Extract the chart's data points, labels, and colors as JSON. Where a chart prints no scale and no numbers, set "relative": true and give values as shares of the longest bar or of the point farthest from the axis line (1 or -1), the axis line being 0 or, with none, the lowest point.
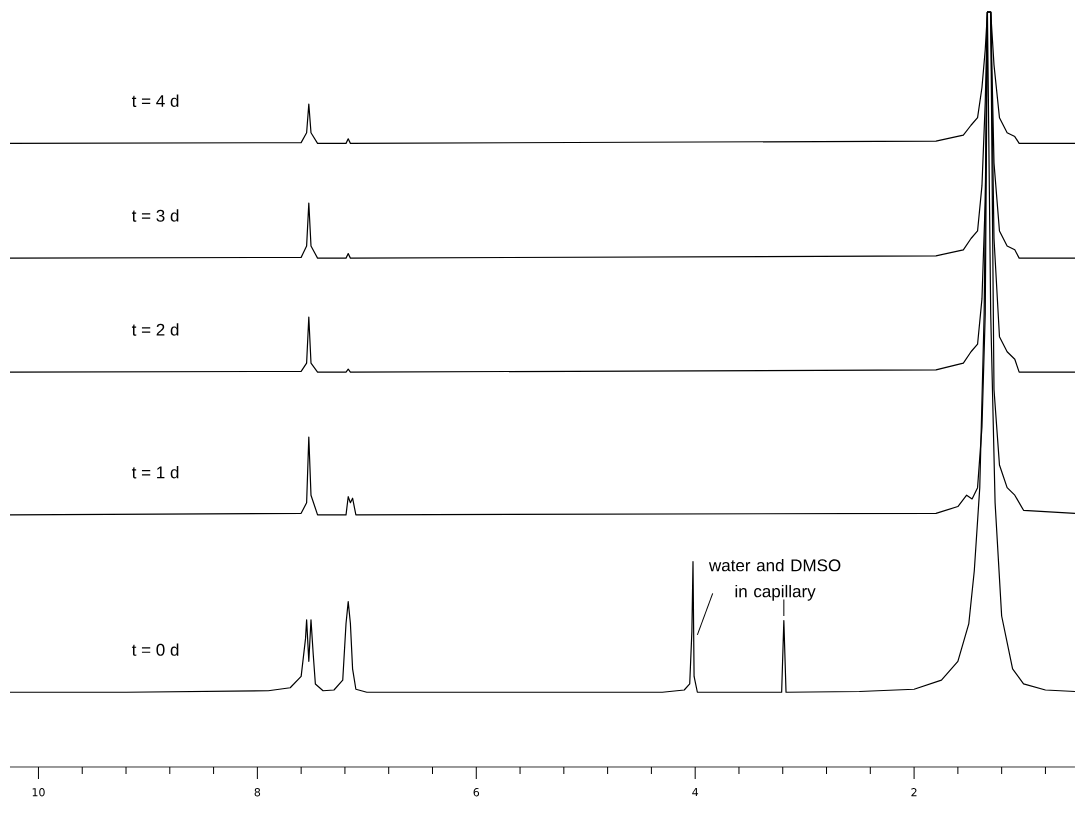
{
  "chart_data": {
    "type": "line",
    "relative": true,
    "xlim": [
      10.26,
      0.53
    ],
    "xticks": [
      10,
      {
        "value": 9.6,
        "label": null
      },
      {
        "value": 9.2,
        "label": null
      },
      {
        "value": 8.8,
        "label": null
      },
      {
        "value": 8.4,
        "label": null
      },
      8,
      {
        "value": 7.6,
        "label": null
      },
      {
        "value": 7.2,
        "label": null
      },
      {
        "value": 6.8,
        "label": null
      },
      {
        "value": 6.4,
        "label": null
      },
      6,
      {
        "value": 5.6,
        "label": null
      },
      {
        "value": 5.2,
        "label": null
      },
      {
        "value": 4.8,
        "label": null
      },
      {
        "value": 4.4,
        "label": null
      },
      4,
      {
        "value": 3.6,
        "label": null
      },
      {
        "value": 3.2,
        "label": null
      },
      {
        "value": 2.8,
        "label": null
      },
      {
        "value": 2.4,
        "label": null
      },
      2,
      {
        "value": 1.6,
        "label": null
      },
      {
        "value": 1.2,
        "label": null
      },
      {
        "value": 0.8,
        "label": null
      }
    ],
    "series": [
      {
        "name": "t = 0 d",
        "color": "#000000",
        "x": [
          10.26,
          9.2,
          7.9,
          7.7,
          7.6,
          7.56,
          7.55,
          7.53,
          7.51,
          7.49,
          7.47,
          7.4,
          7.3,
          7.22,
          7.19,
          7.17,
          7.15,
          7.13,
          7.1,
          7.0,
          4.3,
          4.1,
          4.05,
          4.03,
          4.02,
          4.01,
          3.98,
          3.21,
          3.19,
          3.17,
          2.5,
          2.0,
          1.75,
          1.6,
          1.5,
          1.45,
          1.4,
          1.36,
          1.33,
          1.3,
          1.26,
          1.2,
          1.1,
          1.0,
          0.8,
          0.53
        ],
        "values": [
          0.099,
          0.099,
          0.101,
          0.105,
          0.12,
          0.17,
          0.195,
          0.14,
          0.195,
          0.15,
          0.11,
          0.101,
          0.102,
          0.115,
          0.19,
          0.219,
          0.19,
          0.13,
          0.103,
          0.099,
          0.099,
          0.102,
          0.11,
          0.18,
          0.272,
          0.12,
          0.099,
          0.099,
          0.194,
          0.099,
          0.1,
          0.103,
          0.115,
          0.14,
          0.19,
          0.26,
          0.37,
          0.6,
          1.0,
          0.6,
          0.35,
          0.2,
          0.13,
          0.11,
          0.102,
          0.1
        ]
      },
      {
        "name": "t = 1 d",
        "color": "#000000",
        "x": [
          10.26,
          7.6,
          7.55,
          7.53,
          7.51,
          7.45,
          7.19,
          7.17,
          7.15,
          7.13,
          7.1,
          1.8,
          1.6,
          1.52,
          1.47,
          1.42,
          1.38,
          1.35,
          1.33,
          1.3,
          1.27,
          1.22,
          1.15,
          1.08,
          1.0,
          0.53
        ],
        "values": [
          0.334,
          0.336,
          0.35,
          0.437,
          0.36,
          0.334,
          0.334,
          0.358,
          0.35,
          0.356,
          0.334,
          0.336,
          0.345,
          0.36,
          0.355,
          0.37,
          0.45,
          0.6,
          1.0,
          1.0,
          0.5,
          0.4,
          0.37,
          0.36,
          0.34,
          0.336
        ]
      },
      {
        "name": "t = 2 d",
        "color": "#000000",
        "x": [
          10.26,
          7.6,
          7.55,
          7.53,
          7.51,
          7.45,
          7.19,
          7.17,
          7.15,
          1.8,
          1.55,
          1.48,
          1.42,
          1.38,
          1.35,
          1.33,
          1.3,
          1.27,
          1.22,
          1.15,
          1.08,
          1.04,
          0.53
        ],
        "values": [
          0.523,
          0.524,
          0.535,
          0.596,
          0.535,
          0.523,
          0.523,
          0.527,
          0.523,
          0.526,
          0.535,
          0.55,
          0.56,
          0.62,
          0.75,
          1.0,
          1.0,
          0.7,
          0.57,
          0.55,
          0.54,
          0.523,
          0.523
        ]
      },
      {
        "name": "t = 3 d",
        "color": "#000000",
        "x": [
          10.26,
          7.6,
          7.55,
          7.53,
          7.51,
          7.45,
          7.19,
          7.17,
          7.15,
          1.8,
          1.55,
          1.48,
          1.42,
          1.38,
          1.35,
          1.33,
          1.3,
          1.27,
          1.22,
          1.15,
          1.08,
          1.04,
          0.53
        ],
        "values": [
          0.674,
          0.675,
          0.69,
          0.747,
          0.69,
          0.674,
          0.674,
          0.68,
          0.674,
          0.677,
          0.685,
          0.7,
          0.71,
          0.77,
          0.88,
          1.0,
          1.0,
          0.8,
          0.71,
          0.69,
          0.685,
          0.674,
          0.674
        ]
      },
      {
        "name": "t = 4 d",
        "color": "#000000",
        "x": [
          10.26,
          7.6,
          7.55,
          7.53,
          7.51,
          7.45,
          7.19,
          7.17,
          7.15,
          1.8,
          1.55,
          1.48,
          1.42,
          1.38,
          1.35,
          1.33,
          1.3,
          1.27,
          1.22,
          1.15,
          1.08,
          1.04,
          0.53
        ],
        "values": [
          0.826,
          0.827,
          0.84,
          0.878,
          0.84,
          0.826,
          0.826,
          0.832,
          0.826,
          0.829,
          0.837,
          0.85,
          0.86,
          0.9,
          0.95,
          1.0,
          1.0,
          0.93,
          0.86,
          0.84,
          0.835,
          0.826,
          0.826
        ]
      }
    ],
    "annotations": [
      "water and DMSO in capillary"
    ]
  }
}
